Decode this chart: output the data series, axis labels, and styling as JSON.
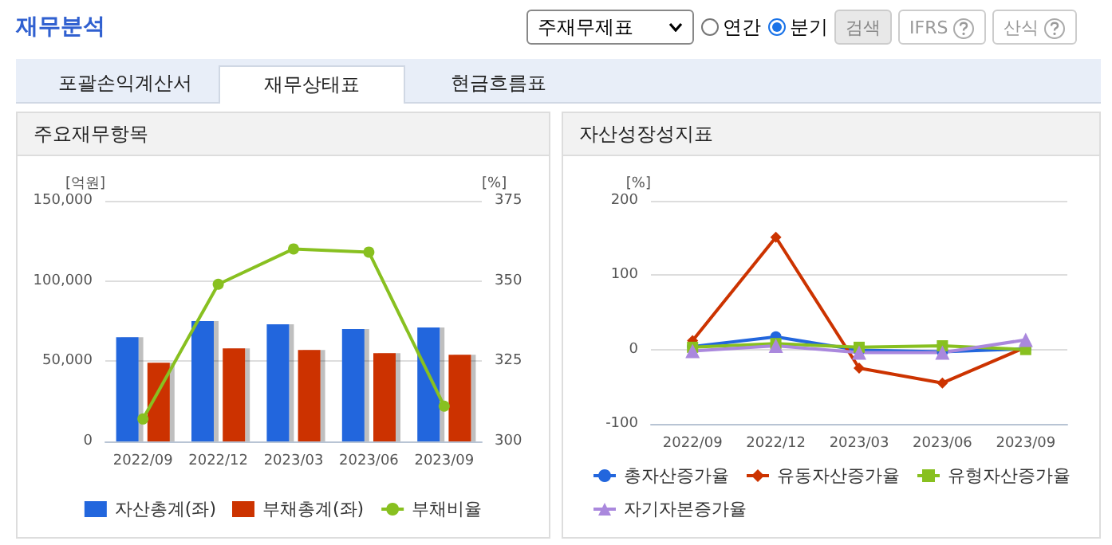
{
  "chart_data": [
    {
      "type": "other",
      "title": "재무분석",
      "annotations": [
        "주재무제표",
        "연간",
        "분기",
        "검색",
        "IFRS",
        "산식",
        "포괄손익계산서",
        "재무상태표",
        "현금흐름표"
      ]
    },
    {
      "type": "bar",
      "title": "주요재무항목",
      "ylabel": "[억원]",
      "y2label": "[%]",
      "categories": [
        "2022/09",
        "2022/12",
        "2023/03",
        "2023/06",
        "2023/09"
      ],
      "series": [
        {
          "name": "자산총계(좌)",
          "color": "#2266dd",
          "values": [
            65000,
            75000,
            73000,
            70000,
            71000
          ]
        },
        {
          "name": "부채총계(좌)",
          "color": "#cc3300",
          "values": [
            49000,
            58000,
            57000,
            55000,
            54000
          ]
        },
        {
          "name": "부채비율",
          "type": "line",
          "axis": "y2",
          "color": "#88c020",
          "marker": "circle",
          "values": [
            307,
            349,
            360,
            359,
            311
          ]
        }
      ],
      "ylim": [
        0,
        150000
      ],
      "yticks": [
        {
          "value": 0,
          "label": "0"
        },
        {
          "value": 50000,
          "label": "50,000"
        },
        {
          "value": 100000,
          "label": "100,000"
        },
        {
          "value": 150000,
          "label": "150,000"
        }
      ],
      "y2lim": [
        300,
        375
      ],
      "y2ticks": [
        300,
        325,
        350,
        375
      ],
      "grid": "y",
      "legend": "bottom"
    },
    {
      "type": "line",
      "title": "자산성장성지표",
      "ylabel": "[%]",
      "categories": [
        "2022/09",
        "2022/12",
        "2023/03",
        "2023/06",
        "2023/09"
      ],
      "series": [
        {
          "name": "총자산증가율",
          "color": "#2266dd",
          "marker": "circle",
          "values": [
            4,
            17,
            -1,
            -3,
            1
          ]
        },
        {
          "name": "유동자산증가율",
          "color": "#cc3300",
          "marker": "diamond",
          "values": [
            12,
            151,
            -25,
            -45,
            3
          ]
        },
        {
          "name": "유형자산증가율",
          "color": "#88c020",
          "marker": "square",
          "values": [
            3,
            8,
            3,
            5,
            0
          ]
        },
        {
          "name": "자기자본증가율",
          "color": "#aa88dd",
          "marker": "triangle",
          "values": [
            -2,
            5,
            -4,
            -4,
            13
          ]
        }
      ],
      "ylim": [
        -100,
        200
      ],
      "yticks": [
        -100,
        0,
        100,
        200
      ],
      "grid": "y",
      "legend": "bottom"
    }
  ]
}
